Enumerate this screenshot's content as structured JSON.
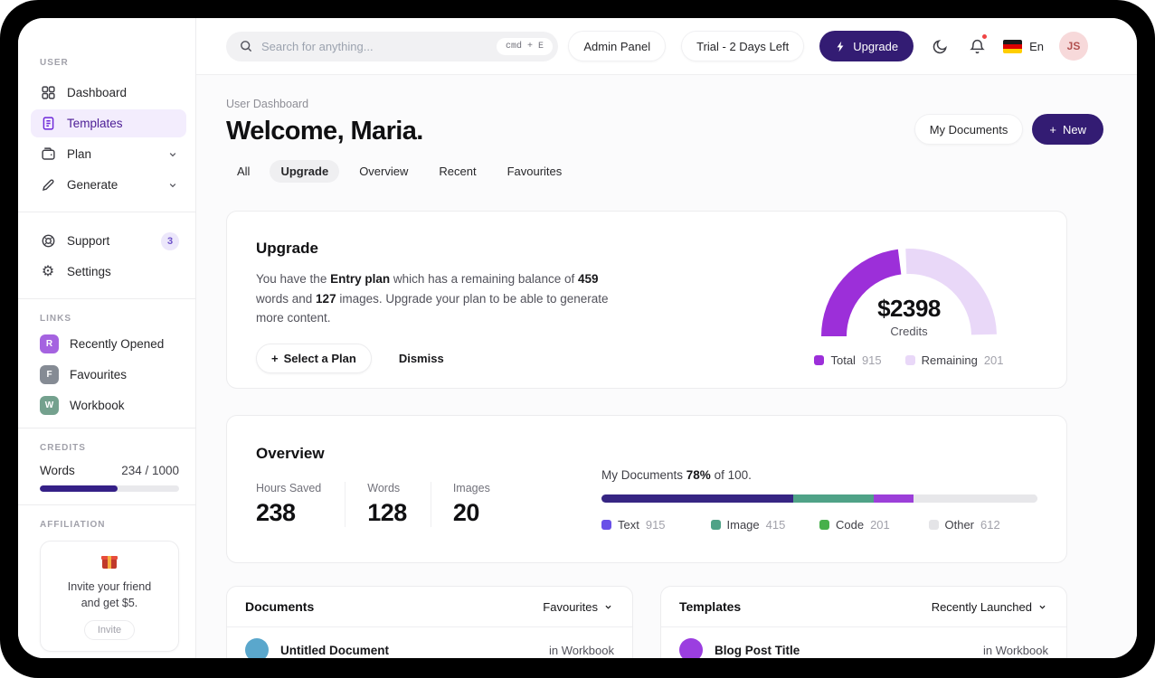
{
  "colors": {
    "accent_dark_purple": "#331c73",
    "active_item_bg": "#f3edfd",
    "credits_bar": "#352087",
    "gauge_total": "#9c2fd9",
    "gauge_remaining": "#e9d8f8",
    "link_badge_r": "#a563e0",
    "link_badge_f": "#858b94",
    "link_badge_w": "#74a18e",
    "row_avatar_doc": "#5aa7cc",
    "row_avatar_template": "#9b3ee0"
  },
  "topbar": {
    "search": {
      "placeholder": "Search for anything...",
      "shortcut": "cmd + E"
    },
    "admin_panel": "Admin Panel",
    "trial": "Trial - 2 Days Left",
    "upgrade": "Upgrade",
    "language": "En",
    "avatar_initials": "JS"
  },
  "sidebar": {
    "sections": {
      "user": "USER",
      "links": "LINKS",
      "credits": "CREDITS",
      "affiliation": "AFFILIATION"
    },
    "items": [
      {
        "label": "Dashboard"
      },
      {
        "label": "Templates"
      },
      {
        "label": "Plan"
      },
      {
        "label": "Generate"
      },
      {
        "label": "Support",
        "badge": "3"
      },
      {
        "label": "Settings"
      }
    ],
    "links": [
      {
        "initial": "R",
        "label": "Recently Opened",
        "color": "#a563e0"
      },
      {
        "initial": "F",
        "label": "Favourites",
        "color": "#858b94"
      },
      {
        "initial": "W",
        "label": "Workbook",
        "color": "#74a18e"
      }
    ],
    "credits": {
      "label": "Words",
      "value": "234 / 1000",
      "fill_percent": 56
    },
    "affiliation": {
      "line1": "Invite your friend",
      "line2": "and get $5.",
      "button": "Invite"
    }
  },
  "header": {
    "breadcrumb": "User Dashboard",
    "title": "Welcome, Maria.",
    "tabs": [
      "All",
      "Upgrade",
      "Overview",
      "Recent",
      "Favourites"
    ],
    "active_tab": "Upgrade",
    "my_documents": "My Documents",
    "new_plus": "+",
    "new_label": "New"
  },
  "upgrade_card": {
    "title": "Upgrade",
    "body": {
      "t1": "You have the ",
      "b1": "Entry plan",
      "t2": " which has a remaining balance of ",
      "b2": "459",
      "t3": " words and ",
      "b3": "127",
      "t4": " images. Upgrade your plan to be able to generate more content."
    },
    "select_plan_plus": "+",
    "select_plan": "Select a Plan",
    "dismiss": "Dismiss",
    "gauge": {
      "type": "donut-semicircle",
      "center_value": "$2398",
      "center_label": "Credits",
      "gap_degrees": 5,
      "segments": [
        {
          "label": "Total",
          "value": "915",
          "fraction": 0.46,
          "color": "#9c2fd9"
        },
        {
          "label": "Remaining",
          "value": "201",
          "fraction": 0.505,
          "color": "#e9d8f8"
        }
      ]
    }
  },
  "overview_card": {
    "title": "Overview",
    "stats": [
      {
        "label": "Hours Saved",
        "value": "238"
      },
      {
        "label": "Words",
        "value": "128"
      },
      {
        "label": "Images",
        "value": "20"
      }
    ],
    "progress": {
      "type": "stacked-bar",
      "label_prefix": "My Documents ",
      "label_percent": "78%",
      "label_suffix": " of 100.",
      "segments": [
        {
          "fraction": 0.44,
          "color": "#362583"
        },
        {
          "fraction": 0.185,
          "color": "#4fa287"
        },
        {
          "fraction": 0.09,
          "color": "#9c3fd9"
        },
        {
          "fraction": 0.285,
          "color": "#e7e7ea"
        }
      ],
      "legend": [
        {
          "label": "Text",
          "value": "915",
          "color": "#6950e8"
        },
        {
          "label": "Image",
          "value": "415",
          "color": "#4fa287"
        },
        {
          "label": "Code",
          "value": "201",
          "color": "#47b04b"
        },
        {
          "label": "Other",
          "value": "612",
          "color": "#e4e4e7"
        }
      ]
    }
  },
  "documents_card": {
    "title": "Documents",
    "filter": "Favourites",
    "rows": [
      {
        "title": "Untitled Document",
        "location": "in Workbook",
        "color": "#5aa7cc"
      }
    ]
  },
  "templates_card": {
    "title": "Templates",
    "filter": "Recently Launched",
    "rows": [
      {
        "title": "Blog Post Title",
        "location": "in Workbook",
        "color": "#9b3ee0"
      }
    ]
  }
}
